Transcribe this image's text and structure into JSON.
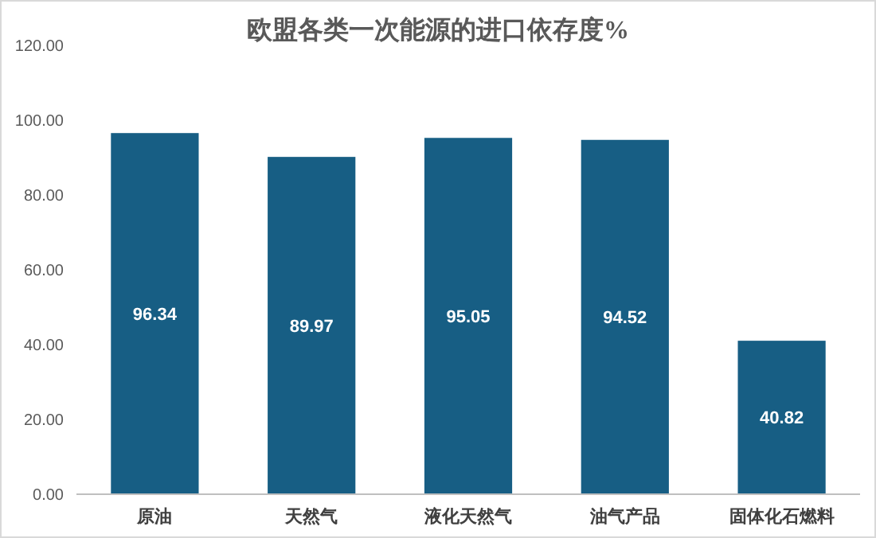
{
  "chart_data": {
    "type": "bar",
    "title": "欧盟各类一次能源的进口依存度%",
    "categories": [
      "原油",
      "天然气",
      "液化天然气",
      "油气产品",
      "固体化石燃料"
    ],
    "values": [
      96.34,
      89.97,
      95.05,
      94.52,
      40.82
    ],
    "color": "#175e84",
    "ylim": [
      0,
      120
    ],
    "yticks": [
      {
        "value": 0,
        "label": "0.00"
      },
      {
        "value": 20,
        "label": "20.00"
      },
      {
        "value": 40,
        "label": "40.00"
      },
      {
        "value": 60,
        "label": "60.00"
      },
      {
        "value": 80,
        "label": "80.00"
      },
      {
        "value": 100,
        "label": "100.00"
      },
      {
        "value": 120,
        "label": "120.00"
      }
    ],
    "data_labels": true
  }
}
